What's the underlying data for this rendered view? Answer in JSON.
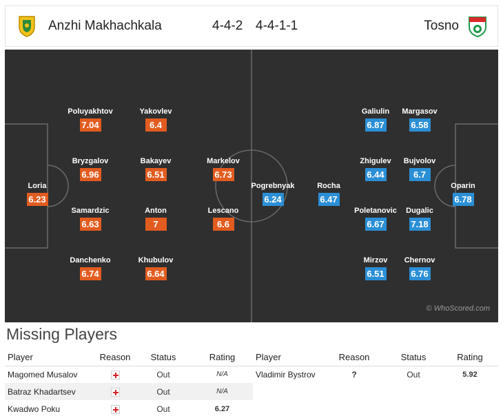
{
  "header": {
    "home_team": "Anzhi Makhachkala",
    "home_formation": "4-4-2",
    "away_formation": "4-4-1-1",
    "away_team": "Tosno",
    "home_logo_icon": "anzhi-crest-icon",
    "away_logo_icon": "tosno-crest-icon"
  },
  "colors": {
    "home_rating": "#e25c20",
    "away_rating": "#2b8fd6",
    "pitch": "#2f2f2f"
  },
  "home_players": [
    {
      "name": "Loria",
      "rating": "6.23"
    },
    {
      "name": "Poluyakhtov",
      "rating": "7.04"
    },
    {
      "name": "Bryzgalov",
      "rating": "6.96"
    },
    {
      "name": "Samardzic",
      "rating": "6.63"
    },
    {
      "name": "Danchenko",
      "rating": "6.74"
    },
    {
      "name": "Yakovlev",
      "rating": "6.4"
    },
    {
      "name": "Bakayev",
      "rating": "6.51"
    },
    {
      "name": "Anton",
      "rating": "7"
    },
    {
      "name": "Khubulov",
      "rating": "6.64"
    },
    {
      "name": "Markelov",
      "rating": "6.73"
    },
    {
      "name": "Lescano",
      "rating": "6.6"
    }
  ],
  "away_players": [
    {
      "name": "Pogrebnyak",
      "rating": "6.24"
    },
    {
      "name": "Rocha",
      "rating": "6.47"
    },
    {
      "name": "Galiulin",
      "rating": "6.87"
    },
    {
      "name": "Zhigulev",
      "rating": "6.44"
    },
    {
      "name": "Poletanovic",
      "rating": "6.67"
    },
    {
      "name": "Mirzov",
      "rating": "6.51"
    },
    {
      "name": "Margasov",
      "rating": "6.58"
    },
    {
      "name": "Bujvolov",
      "rating": "6.7"
    },
    {
      "name": "Dugalic",
      "rating": "7.18"
    },
    {
      "name": "Chernov",
      "rating": "6.76"
    },
    {
      "name": "Oparin",
      "rating": "6.78"
    }
  ],
  "watermark": "© WhoScored.com",
  "missing": {
    "title": "Missing Players",
    "columns": {
      "player": "Player",
      "reason": "Reason",
      "status": "Status",
      "rating": "Rating"
    },
    "home": [
      {
        "player": "Magomed Musalov",
        "reason_icon": "injury-cross-icon",
        "status": "Out",
        "rating": "N/A"
      },
      {
        "player": "Batraz Khadartsev",
        "reason_icon": "injury-cross-icon",
        "status": "Out",
        "rating": "N/A"
      },
      {
        "player": "Kwadwo Poku",
        "reason_icon": "injury-cross-icon",
        "status": "Out",
        "rating": "6.27"
      }
    ],
    "away": [
      {
        "player": "Vladimir Bystrov",
        "reason": "?",
        "status": "Out",
        "rating": "5.92"
      }
    ]
  }
}
